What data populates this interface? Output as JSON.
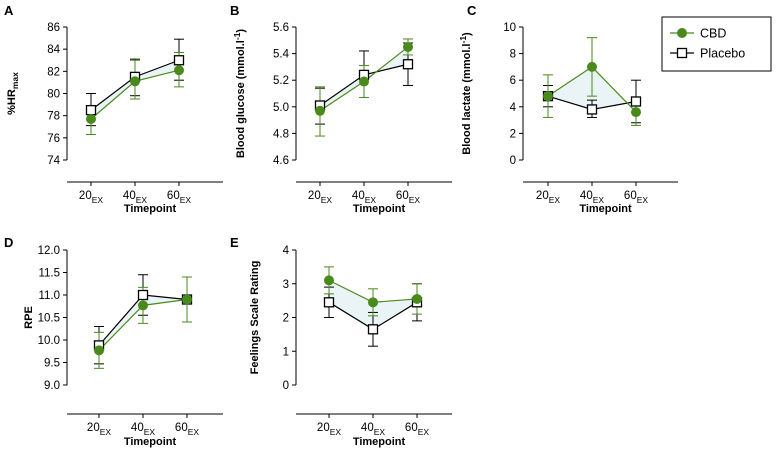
{
  "legend": {
    "items": [
      {
        "name": "CBD",
        "marker": "circle-filled",
        "color": "#4a8a1c"
      },
      {
        "name": "Placebo",
        "marker": "square-open",
        "color": "#000000"
      }
    ]
  },
  "colors": {
    "cbd": "#4a8a1c",
    "placebo": "#000000",
    "fill": "#eaf4f7"
  },
  "chart_data": [
    {
      "panel": "A",
      "type": "line",
      "ylabel_main": "%HR",
      "ylabel_sub": "max",
      "xlabel": "Timepoint",
      "categories": [
        {
          "main": "20",
          "sub": "EX"
        },
        {
          "main": "40",
          "sub": "EX"
        },
        {
          "main": "60",
          "sub": "EX"
        }
      ],
      "ylim": [
        74,
        86
      ],
      "yticks": [
        74,
        76,
        78,
        80,
        82,
        84,
        86
      ],
      "tick_decimals": 0,
      "series": [
        {
          "name": "CBD",
          "values": [
            77.7,
            81.1,
            82.1
          ],
          "err_low": [
            76.3,
            79.5,
            80.6
          ],
          "err_high": [
            78.8,
            83.0,
            83.7
          ]
        },
        {
          "name": "Placebo",
          "values": [
            78.5,
            81.5,
            83.0
          ],
          "err_low": [
            77.1,
            79.8,
            81.2
          ],
          "err_high": [
            80.0,
            83.1,
            84.9
          ]
        }
      ]
    },
    {
      "panel": "B",
      "type": "line",
      "ylabel_main": "Blood glucose (mmol.l",
      "ylabel_sup": "-1",
      "ylabel_end": ")",
      "xlabel": "Timepoint",
      "categories": [
        {
          "main": "20",
          "sub": "EX"
        },
        {
          "main": "40",
          "sub": "EX"
        },
        {
          "main": "60",
          "sub": "EX"
        }
      ],
      "ylim": [
        4.6,
        5.6
      ],
      "yticks": [
        4.6,
        4.8,
        5.0,
        5.2,
        5.4,
        5.6
      ],
      "tick_decimals": 1,
      "series": [
        {
          "name": "CBD",
          "values": [
            4.97,
            5.19,
            5.45
          ],
          "err_low": [
            4.78,
            5.07,
            5.39
          ],
          "err_high": [
            5.15,
            5.31,
            5.51
          ]
        },
        {
          "name": "Placebo",
          "values": [
            5.01,
            5.24,
            5.32
          ],
          "err_low": [
            4.87,
            5.07,
            5.16
          ],
          "err_high": [
            5.14,
            5.42,
            5.48
          ]
        }
      ]
    },
    {
      "panel": "C",
      "type": "line",
      "ylabel_main": "Blood lactate (mmol.l",
      "ylabel_sup": "-1",
      "ylabel_end": ")",
      "xlabel": "Timepoint",
      "categories": [
        {
          "main": "20",
          "sub": "EX"
        },
        {
          "main": "40",
          "sub": "EX"
        },
        {
          "main": "60",
          "sub": "EX"
        }
      ],
      "ylim": [
        0,
        10
      ],
      "yticks": [
        0,
        2,
        4,
        6,
        8,
        10
      ],
      "tick_decimals": 0,
      "series": [
        {
          "name": "CBD",
          "values": [
            4.8,
            7.0,
            3.6
          ],
          "err_low": [
            3.2,
            4.8,
            2.6
          ],
          "err_high": [
            6.4,
            9.2,
            4.6
          ]
        },
        {
          "name": "Placebo",
          "values": [
            4.8,
            3.8,
            4.4
          ],
          "err_low": [
            4.0,
            3.2,
            2.8
          ],
          "err_high": [
            5.6,
            4.5,
            6.0
          ]
        }
      ]
    },
    {
      "panel": "D",
      "type": "line",
      "ylabel_main": "RPE",
      "xlabel": "Timepoint",
      "categories": [
        {
          "main": "20",
          "sub": "EX"
        },
        {
          "main": "40",
          "sub": "EX"
        },
        {
          "main": "60",
          "sub": "EX"
        }
      ],
      "ylim": [
        9.0,
        12.0
      ],
      "yticks": [
        9.0,
        9.5,
        10.0,
        10.5,
        11.0,
        11.5,
        12.0
      ],
      "tick_decimals": 1,
      "series": [
        {
          "name": "CBD",
          "values": [
            9.77,
            10.77,
            10.9
          ],
          "err_low": [
            9.37,
            10.37,
            10.4
          ],
          "err_high": [
            10.17,
            11.17,
            11.4
          ]
        },
        {
          "name": "Placebo",
          "values": [
            9.88,
            11.0,
            10.9
          ],
          "err_low": [
            9.47,
            10.55,
            10.4
          ],
          "err_high": [
            10.3,
            11.45,
            11.4
          ]
        }
      ]
    },
    {
      "panel": "E",
      "type": "line",
      "ylabel_main": "Feelings Scale Rating",
      "xlabel": "Timepoint",
      "categories": [
        {
          "main": "20",
          "sub": "EX"
        },
        {
          "main": "40",
          "sub": "EX"
        },
        {
          "main": "60",
          "sub": "EX"
        }
      ],
      "ylim": [
        0,
        4
      ],
      "yticks": [
        0,
        1,
        2,
        3,
        4
      ],
      "tick_decimals": 0,
      "series": [
        {
          "name": "CBD",
          "values": [
            3.1,
            2.45,
            2.55
          ],
          "err_low": [
            2.7,
            2.05,
            2.1
          ],
          "err_high": [
            3.5,
            2.85,
            3.0
          ]
        },
        {
          "name": "Placebo",
          "values": [
            2.45,
            1.65,
            2.45
          ],
          "err_low": [
            2.0,
            1.15,
            1.9
          ],
          "err_high": [
            2.9,
            2.15,
            3.0
          ]
        }
      ]
    }
  ]
}
